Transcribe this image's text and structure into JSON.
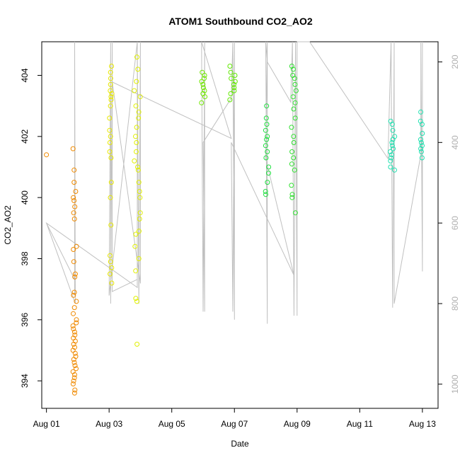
{
  "chart_data": {
    "type": "scatter",
    "title": "ATOM1 Southbound CO2_AO2",
    "xlabel": "Date",
    "ylabel": "CO2_AO2",
    "x_ticks": [
      "Aug 01",
      "Aug 03",
      "Aug 05",
      "Aug 07",
      "Aug 09",
      "Aug 11",
      "Aug 13"
    ],
    "y_ticks": [
      "394",
      "396",
      "398",
      "400",
      "402",
      "404"
    ],
    "y2_ticks": [
      "200",
      "400",
      "600",
      "800",
      "1000"
    ],
    "xlim_days": [
      0.85,
      13.5
    ],
    "ylim": [
      393.1,
      405.1
    ],
    "y2lim": [
      1060,
      150
    ],
    "y2_is_reversed": true,
    "grid": false,
    "colors": {
      "Aug 01": "#f08a00",
      "Aug 02": "#f08a00",
      "Aug 03": "#e8e800",
      "Aug 04": "#e0f000",
      "Aug 06": "#70e800",
      "Aug 07": "#60e800",
      "Aug 08": "#20e040",
      "Aug 09": "#30e030",
      "Aug 12": "#20e0b0",
      "Aug 13": "#20e0b0",
      "gray_line": "#c0c0c0"
    },
    "clusters": [
      {
        "day": 1.0,
        "spread": 0.0,
        "y_values": [
          401.4
        ]
      },
      {
        "day": 1.9,
        "spread": 0.06,
        "y_values": [
          393.6,
          393.7,
          393.9,
          394.0,
          394.1,
          394.2,
          394.3,
          394.4,
          394.5,
          394.6,
          394.7,
          394.8,
          394.9,
          395.0,
          395.1,
          395.2,
          395.3,
          395.4,
          395.5,
          395.6,
          395.7,
          395.8,
          395.9,
          396.0,
          396.2,
          396.4,
          396.6,
          396.8,
          396.9,
          397.4,
          397.5,
          397.9,
          398.3,
          398.4,
          399.3,
          399.5,
          399.7,
          399.9,
          400.0,
          400.2,
          400.5,
          400.9,
          401.6
        ]
      },
      {
        "day": 3.05,
        "spread": 0.04,
        "y_values": [
          397.2,
          397.5,
          397.7,
          397.9,
          398.1,
          399.1,
          400.0,
          400.5,
          401.3,
          401.5,
          401.8,
          402.0,
          402.2,
          402.6,
          403.0,
          403.2,
          403.3,
          403.4,
          403.5,
          403.7,
          403.9,
          404.1,
          404.3
        ]
      },
      {
        "day": 3.9,
        "spread": 0.1,
        "y_values": [
          395.2,
          396.6,
          396.7,
          397.6,
          398.0,
          398.4,
          398.8,
          398.9,
          399.3,
          399.5,
          400.0,
          400.2,
          400.5,
          400.9,
          401.0,
          401.2,
          401.5,
          401.8,
          402.0,
          402.3,
          402.6,
          402.8,
          403.0,
          403.3,
          403.5,
          403.8,
          404.2,
          404.6
        ]
      },
      {
        "day": 6.0,
        "spread": 0.06,
        "y_values": [
          403.1,
          403.3,
          403.4,
          403.5,
          403.6,
          403.7,
          403.8,
          403.9,
          404.0,
          404.1
        ]
      },
      {
        "day": 6.95,
        "spread": 0.1,
        "y_values": [
          403.2,
          403.4,
          403.5,
          403.6,
          403.7,
          403.8,
          403.9,
          404.0,
          404.1,
          404.3
        ]
      },
      {
        "day": 8.05,
        "spread": 0.06,
        "y_values": [
          400.1,
          400.2,
          400.5,
          400.8,
          401.0,
          401.3,
          401.5,
          401.7,
          401.9,
          402.0,
          402.2,
          402.4,
          402.6,
          403.0
        ]
      },
      {
        "day": 8.9,
        "spread": 0.08,
        "y_values": [
          399.5,
          400.0,
          400.1,
          400.4,
          400.9,
          401.1,
          401.3,
          401.5,
          401.8,
          402.0,
          402.3,
          402.6,
          402.9,
          403.1,
          403.3,
          403.5,
          403.7,
          403.9,
          404.0,
          404.2,
          404.3
        ]
      },
      {
        "day": 12.05,
        "spread": 0.08,
        "y_values": [
          400.9,
          401.0,
          401.2,
          401.3,
          401.4,
          401.5,
          401.6,
          401.7,
          401.8,
          401.9,
          402.0,
          402.2,
          402.4,
          402.5
        ]
      },
      {
        "day": 12.95,
        "spread": 0.05,
        "y_values": [
          401.3,
          401.5,
          401.6,
          401.7,
          401.8,
          401.9,
          402.1,
          402.4,
          402.5,
          402.8
        ]
      }
    ],
    "gray_line_y2": [
      [
        1.0,
        600
      ],
      [
        1.9,
        740
      ],
      [
        1.9,
        150
      ],
      [
        1.9,
        780
      ],
      [
        1.9,
        150
      ],
      [
        1.92,
        800
      ],
      [
        1.0,
        600
      ],
      [
        3.9,
        760
      ],
      [
        3.9,
        150
      ],
      [
        3.0,
        780
      ],
      [
        3.05,
        150
      ],
      [
        3.05,
        800
      ],
      [
        3.1,
        150
      ],
      [
        3.1,
        770
      ],
      [
        3.9,
        740
      ],
      [
        3.9,
        150
      ],
      [
        3.95,
        800
      ],
      [
        4.0,
        150
      ],
      [
        4.0,
        750
      ],
      [
        3.1,
        250
      ],
      [
        6.9,
        390
      ],
      [
        5.95,
        150
      ],
      [
        6.0,
        820
      ],
      [
        6.05,
        150
      ],
      [
        6.05,
        820
      ],
      [
        6.0,
        400
      ],
      [
        6.9,
        290
      ],
      [
        6.95,
        150
      ],
      [
        7.0,
        840
      ],
      [
        7.0,
        150
      ],
      [
        6.95,
        820
      ],
      [
        6.9,
        400
      ],
      [
        8.9,
        730
      ],
      [
        8.0,
        440
      ],
      [
        8.05,
        150
      ],
      [
        8.05,
        850
      ],
      [
        8.0,
        150
      ],
      [
        8.05,
        200
      ],
      [
        8.8,
        300
      ],
      [
        8.85,
        150
      ],
      [
        8.9,
        830
      ],
      [
        8.95,
        150
      ],
      [
        9.0,
        830
      ],
      [
        9.0,
        150
      ],
      [
        9.4,
        150
      ],
      [
        11.9,
        440
      ],
      [
        12.0,
        150
      ],
      [
        12.05,
        810
      ],
      [
        12.1,
        150
      ],
      [
        12.1,
        800
      ],
      [
        12.95,
        430
      ],
      [
        12.95,
        150
      ],
      [
        13.0,
        720
      ],
      [
        13.0,
        150
      ]
    ]
  }
}
